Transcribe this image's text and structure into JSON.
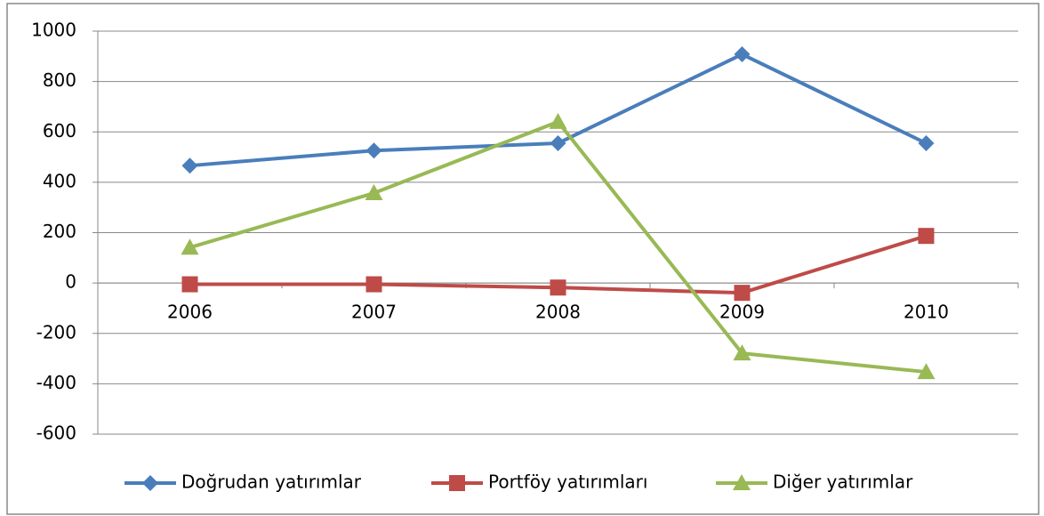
{
  "chart_data": {
    "type": "line",
    "categories": [
      "2006",
      "2007",
      "2008",
      "2009",
      "2010"
    ],
    "series": [
      {
        "name": "Doğrudan yatırımlar",
        "color": "#4a7ebb",
        "marker": "diamond",
        "values": [
          466,
          526,
          555,
          908,
          555
        ]
      },
      {
        "name": "Portföy yatırımları",
        "color": "#be4b48",
        "marker": "square",
        "values": [
          -5,
          -5,
          -18,
          -39,
          187
        ]
      },
      {
        "name": "Diğer yatırımlar",
        "color": "#98b954",
        "marker": "triangle",
        "values": [
          141,
          357,
          640,
          -279,
          -353
        ]
      }
    ],
    "ylim": [
      -600,
      1000
    ],
    "yticks": [
      -600,
      -400,
      -200,
      0,
      200,
      400,
      600,
      800,
      1000
    ],
    "grid": true,
    "legend": "bottom"
  }
}
